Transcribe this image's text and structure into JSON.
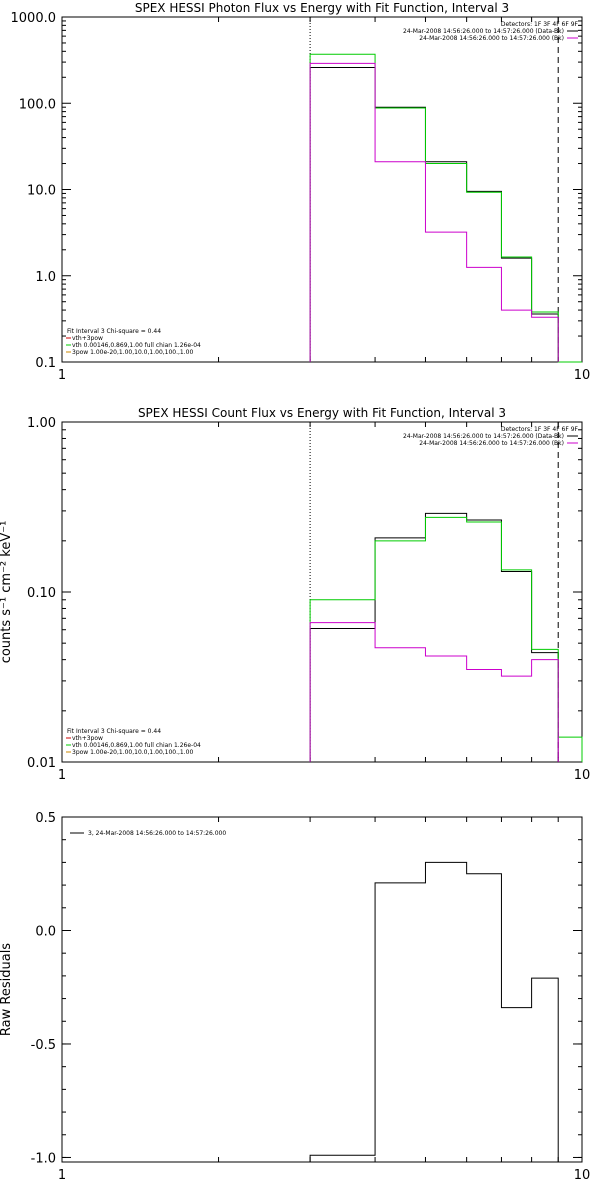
{
  "chart_data": [
    {
      "type": "line",
      "title": "SPEX HESSI Photon Flux vs Energy with Fit Function, Interval 3",
      "xscale": "log",
      "yscale": "log",
      "xlim": [
        1,
        10
      ],
      "ylim": [
        0.1,
        1000
      ],
      "xticks": [
        {
          "v": 1,
          "label": "1"
        },
        {
          "v": 10,
          "label": "10"
        }
      ],
      "yticks": [
        {
          "v": 0.1,
          "label": "0.1"
        },
        {
          "v": 1,
          "label": "1.0"
        },
        {
          "v": 10,
          "label": "10.0"
        },
        {
          "v": 100,
          "label": "100.0"
        },
        {
          "v": 1000,
          "label": "1000.0"
        }
      ],
      "ylabel": "",
      "vlines": [
        {
          "x": 3,
          "style": "dotted"
        },
        {
          "x": 9,
          "style": "dashed"
        }
      ],
      "info_top_right": [
        {
          "text": "Detectors: 1F 3F 4F 6F 9F",
          "color": null
        },
        {
          "text": "24-Mar-2008 14:56:26.000 to 14:57:26.000 (Data-Bk)",
          "color": "#000000"
        },
        {
          "text": "24-Mar-2008 14:56:26.000 to 14:57:26.000 (Bk)",
          "color": "#cc00cc"
        }
      ],
      "legend_bottom_left": [
        {
          "text": "Fit Interval 3   Chi-square = 0.44",
          "color": null
        },
        {
          "text": "vth+3pow",
          "color": "#cc0000"
        },
        {
          "text": "vth 0.00146,0.869,1.00  full chian 1.26e-04",
          "color": "#00cc00"
        },
        {
          "text": "3pow 1.00e-20,1.00,10.0,1.00,100.,1.00",
          "color": "#cc8800"
        }
      ],
      "bin_edges": [
        3,
        4,
        5,
        6,
        7,
        8,
        9,
        10
      ],
      "series": [
        {
          "name": "Data-Bk",
          "color": "#000000",
          "values": [
            260,
            90,
            21,
            9.5,
            1.6,
            0.36,
            null
          ]
        },
        {
          "name": "vth+3pow",
          "color": "#00cc00",
          "values": [
            370,
            88,
            20,
            9.3,
            1.65,
            0.38,
            0.1
          ]
        },
        {
          "name": "Bk",
          "color": "#cc00cc",
          "values": [
            290,
            21,
            3.2,
            1.25,
            0.4,
            0.33,
            null
          ]
        }
      ]
    },
    {
      "type": "line",
      "title": "SPEX HESSI Count Flux vs Energy with Fit Function, Interval 3",
      "xscale": "log",
      "yscale": "log",
      "xlim": [
        1,
        10
      ],
      "ylim": [
        0.01,
        1
      ],
      "xticks": [
        {
          "v": 1,
          "label": "1"
        },
        {
          "v": 10,
          "label": "10"
        }
      ],
      "yticks": [
        {
          "v": 0.01,
          "label": "0.01"
        },
        {
          "v": 0.1,
          "label": "0.10"
        },
        {
          "v": 1,
          "label": "1.00"
        }
      ],
      "ylabel": "counts s⁻¹ cm⁻² keV⁻¹",
      "vlines": [
        {
          "x": 3,
          "style": "dotted"
        },
        {
          "x": 9,
          "style": "dashed"
        }
      ],
      "info_top_right": [
        {
          "text": "Detectors: 1F 3F 4F 6F 9F",
          "color": null
        },
        {
          "text": "24-Mar-2008 14:56:26.000 to 14:57:26.000 (Data-Bk)",
          "color": "#000000"
        },
        {
          "text": "24-Mar-2008 14:56:26.000 to 14:57:26.000 (Bk)",
          "color": "#cc00cc"
        }
      ],
      "legend_bottom_left": [
        {
          "text": "Fit Interval 3   Chi-square = 0.44",
          "color": null
        },
        {
          "text": "vth+3pow",
          "color": "#cc0000"
        },
        {
          "text": "vth 0.00146,0.869,1.00  full chian 1.26e-04",
          "color": "#00cc00"
        },
        {
          "text": "3pow 1.00e-20,1.00,10.0,1.00,100.,1.00",
          "color": "#cc8800"
        }
      ],
      "bin_edges": [
        3,
        4,
        5,
        6,
        7,
        8,
        9,
        10
      ],
      "series": [
        {
          "name": "Data-Bk",
          "color": "#000000",
          "values": [
            0.061,
            0.208,
            0.29,
            0.265,
            0.132,
            0.044,
            null
          ]
        },
        {
          "name": "vth+3pow",
          "color": "#00cc00",
          "values": [
            0.09,
            0.2,
            0.275,
            0.258,
            0.135,
            0.046,
            0.014
          ]
        },
        {
          "name": "Bk",
          "color": "#cc00cc",
          "values": [
            0.066,
            0.047,
            0.042,
            0.035,
            0.032,
            0.04,
            null
          ]
        }
      ]
    },
    {
      "type": "line",
      "title": "",
      "xscale": "log",
      "yscale": "linear",
      "xlim": [
        1,
        10
      ],
      "ylim": [
        -1.02,
        0.5
      ],
      "xticks": [
        {
          "v": 1,
          "label": "1"
        },
        {
          "v": 10,
          "label": "10"
        }
      ],
      "yticks": [
        {
          "v": -1,
          "label": "-1.0"
        },
        {
          "v": -0.5,
          "label": "-0.5"
        },
        {
          "v": 0,
          "label": "0.0"
        },
        {
          "v": 0.5,
          "label": "0.5"
        }
      ],
      "ylabel": "Raw Residuals",
      "vlines": [],
      "info_top_right": [],
      "legend_top_left": [
        {
          "text": "3, 24-Mar-2008 14:56:26.000 to 14:57:26.000",
          "color": "#000000"
        }
      ],
      "bin_edges": [
        3,
        4,
        5,
        6,
        7,
        8,
        9,
        10
      ],
      "series": [
        {
          "name": "3, 24-Mar-2008 14:56:26.000 to 14:57:26.000",
          "color": "#000000",
          "values": [
            -0.99,
            0.21,
            0.3,
            0.25,
            -0.34,
            -0.21,
            -1.02
          ]
        }
      ]
    }
  ]
}
